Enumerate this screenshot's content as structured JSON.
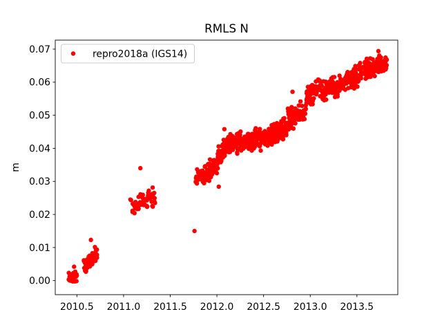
{
  "figure": {
    "background": "#ffffff",
    "text_color": "#000000"
  },
  "chart_data": {
    "type": "scatter",
    "title": "RMLS N",
    "xlabel": "",
    "ylabel": "m",
    "grid": false,
    "legend_position": "upper left",
    "xlim": [
      2010.268,
      2013.938
    ],
    "ylim": [
      -0.00425,
      0.07272
    ],
    "x_ticks": [
      2010.5,
      2011.0,
      2011.5,
      2012.0,
      2012.5,
      2013.0,
      2013.5
    ],
    "x_tick_labels": [
      "2010.5",
      "2011.0",
      "2011.5",
      "2012.0",
      "2012.5",
      "2013.0",
      "2013.5"
    ],
    "y_ticks": [
      0.0,
      0.01,
      0.02,
      0.03,
      0.04,
      0.05,
      0.06,
      0.07
    ],
    "y_tick_labels": [
      "0.00",
      "0.01",
      "0.02",
      "0.03",
      "0.04",
      "0.05",
      "0.06",
      "0.07"
    ],
    "series": [
      {
        "name": "repro2018a (IGS14)",
        "color": "#ff0000",
        "marker": "dot",
        "marker_radius_px": 3.2,
        "trend_description": "North displacement rising from ~0.000 m at 2010.45 to ~0.066 m at 2013.8 with data gaps at 2010.75-2011.05 and 2011.35-2011.75",
        "clusters": [
          {
            "x0": 2010.41,
            "x1": 2010.5,
            "y_start": 0.0008,
            "y_end": 0.0012,
            "spread": 0.0018,
            "n": 26
          },
          {
            "x0": 2010.57,
            "x1": 2010.72,
            "y_start": 0.0048,
            "y_end": 0.0082,
            "spread": 0.0032,
            "n": 42
          },
          {
            "x0": 2011.07,
            "x1": 2011.34,
            "y_start": 0.0225,
            "y_end": 0.0255,
            "spread": 0.0032,
            "n": 68
          },
          {
            "x0": 2011.77,
            "x1": 2011.89,
            "y_start": 0.0313,
            "y_end": 0.0322,
            "spread": 0.003,
            "n": 48
          },
          {
            "x0": 2011.89,
            "x1": 2012.01,
            "y_start": 0.0325,
            "y_end": 0.0355,
            "spread": 0.0035,
            "n": 55
          },
          {
            "x0": 2012.01,
            "x1": 2012.13,
            "y_start": 0.0375,
            "y_end": 0.0412,
            "spread": 0.0035,
            "n": 60
          },
          {
            "x0": 2012.13,
            "x1": 2012.31,
            "y_start": 0.0418,
            "y_end": 0.042,
            "spread": 0.0036,
            "n": 85
          },
          {
            "x0": 2012.31,
            "x1": 2012.56,
            "y_start": 0.042,
            "y_end": 0.0435,
            "spread": 0.0038,
            "n": 105
          },
          {
            "x0": 2012.56,
            "x1": 2012.76,
            "y_start": 0.044,
            "y_end": 0.0465,
            "spread": 0.0038,
            "n": 80
          },
          {
            "x0": 2012.76,
            "x1": 2012.96,
            "y_start": 0.0485,
            "y_end": 0.052,
            "spread": 0.0038,
            "n": 75
          },
          {
            "x0": 2012.96,
            "x1": 2013.11,
            "y_start": 0.0555,
            "y_end": 0.059,
            "spread": 0.004,
            "n": 60
          },
          {
            "x0": 2013.11,
            "x1": 2013.31,
            "y_start": 0.0578,
            "y_end": 0.0585,
            "spread": 0.004,
            "n": 80
          },
          {
            "x0": 2013.31,
            "x1": 2013.56,
            "y_start": 0.0595,
            "y_end": 0.0625,
            "spread": 0.0038,
            "n": 95
          },
          {
            "x0": 2013.56,
            "x1": 2013.76,
            "y_start": 0.0635,
            "y_end": 0.0655,
            "spread": 0.0034,
            "n": 80
          },
          {
            "x0": 2013.76,
            "x1": 2013.82,
            "y_start": 0.065,
            "y_end": 0.0655,
            "spread": 0.0026,
            "n": 30
          },
          {
            "x0": 2013.7,
            "x1": 2013.77,
            "y_start": 0.0668,
            "y_end": 0.0676,
            "spread": 0.0016,
            "n": 10
          }
        ],
        "outlier_points": [
          [
            2010.47,
            0.0042
          ],
          [
            2010.65,
            0.0123
          ],
          [
            2011.18,
            0.034
          ],
          [
            2011.76,
            0.015
          ],
          [
            2012.02,
            0.0284
          ],
          [
            2012.08,
            0.0458
          ],
          [
            2012.81,
            0.0571
          ],
          [
            2013.73,
            0.0694
          ]
        ]
      }
    ]
  }
}
